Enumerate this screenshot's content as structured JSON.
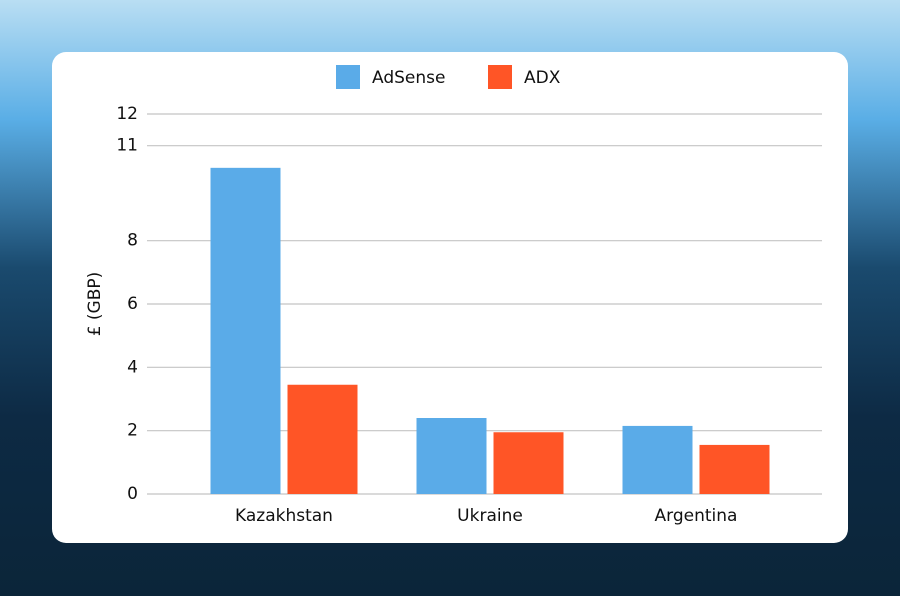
{
  "chart_data": {
    "type": "bar",
    "categories": [
      "Kazakhstan",
      "Ukraine",
      "Argentina"
    ],
    "series": [
      {
        "name": "AdSense",
        "color": "#5aabe8",
        "values": [
          10.3,
          2.4,
          2.15
        ]
      },
      {
        "name": "ADX",
        "color": "#ff5526",
        "values": [
          3.45,
          1.95,
          1.55
        ]
      }
    ],
    "y_label": "£ (GBP)",
    "ylim": [
      0,
      12
    ],
    "yticks": [
      0,
      2,
      4,
      6,
      8,
      11,
      12
    ],
    "grid": true,
    "legend": "top"
  }
}
